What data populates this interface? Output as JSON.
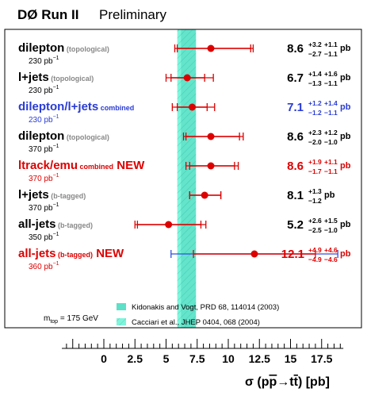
{
  "header": {
    "experiment": "DØ Run II",
    "status": "Preliminary"
  },
  "chart_data": {
    "type": "scatter",
    "orientation": "horizontal",
    "xlabel": "σ (pp̄→tt̄) [pb]",
    "xlim": [
      -3.5,
      19.5
    ],
    "x_ticks": [
      "0",
      "2.5",
      "5",
      "7.5",
      "10",
      "12.5",
      "15",
      "17.5"
    ],
    "theory_bands": [
      {
        "label": "Kidonakis and Vogt, PRD 68, 114014 (2003)",
        "low": 6.2,
        "high": 7.4,
        "color": "#5ee0c8",
        "hatched": false
      },
      {
        "label": "Cacciari et al., JHEP 0404, 068 (2004)",
        "low": 5.9,
        "high": 7.4,
        "color": "#7ff5dc",
        "hatched": true
      }
    ],
    "mtop_note": "m_top = 175 GeV",
    "unit": "pb",
    "lumi_unit": "pb",
    "lumi_exp": "−1",
    "series": [
      {
        "name": "dilepton",
        "tag": "(topological)",
        "new": "",
        "lumi": "230",
        "value": 8.6,
        "value_label": "8.6",
        "stat_up": "+3.2",
        "stat_dn": "−2.7",
        "syst_up": "+1.1",
        "syst_dn": "−1.1",
        "stat_err": [
          -2.7,
          3.2
        ],
        "total_err": [
          -2.9,
          3.4
        ],
        "color": "#000000",
        "bar_color": "#dd0000",
        "color_val": "#000000"
      },
      {
        "name": "l+jets",
        "tag": "(topological)",
        "new": "",
        "lumi": "230",
        "value": 6.7,
        "value_label": "6.7",
        "stat_up": "+1.4",
        "stat_dn": "−1.3",
        "syst_up": "+1.6",
        "syst_dn": "−1.1",
        "stat_err": [
          -1.3,
          1.4
        ],
        "total_err": [
          -1.7,
          2.1
        ],
        "color": "#000000",
        "bar_color": "#dd0000",
        "color_val": "#000000"
      },
      {
        "name": "dilepton/l+jets",
        "tag": "combined",
        "new": "",
        "lumi": "230",
        "value": 7.1,
        "value_label": "7.1",
        "stat_up": "+1.2",
        "stat_dn": "−1.2",
        "syst_up": "+1.4",
        "syst_dn": "−1.1",
        "stat_err": [
          -1.2,
          1.2
        ],
        "total_err": [
          -1.6,
          1.8
        ],
        "color": "#2a3cd4",
        "bar_color": "#dd0000",
        "color_val": "#2a3cd4"
      },
      {
        "name": "dilepton",
        "tag": "(topological)",
        "new": "",
        "lumi": "370",
        "value": 8.6,
        "value_label": "8.6",
        "stat_up": "+2.3",
        "stat_dn": "−2.0",
        "syst_up": "+1.2",
        "syst_dn": "−1.0",
        "stat_err": [
          -2.0,
          2.3
        ],
        "total_err": [
          -2.2,
          2.6
        ],
        "color": "#000000",
        "bar_color": "#dd0000",
        "color_val": "#000000"
      },
      {
        "name": "ltrack/emu",
        "tag": "combined",
        "new": "NEW",
        "lumi": "370",
        "value": 8.6,
        "value_label": "8.6",
        "stat_up": "+1.9",
        "stat_dn": "−1.7",
        "syst_up": "+1.1",
        "syst_dn": "−1.1",
        "stat_err": [
          -1.7,
          1.9
        ],
        "total_err": [
          -2.0,
          2.2
        ],
        "color": "#dd0000",
        "bar_color": "#dd0000",
        "color_val": "#dd0000"
      },
      {
        "name": "l+jets",
        "tag": "(b-tagged)",
        "new": "",
        "lumi": "370",
        "value": 8.1,
        "value_label": "8.1",
        "stat_up": "+1.3",
        "stat_dn": "−1.2",
        "syst_up": "",
        "syst_dn": "",
        "stat_err": [
          -1.2,
          1.3
        ],
        "total_err": [
          -1.2,
          1.3
        ],
        "color": "#000000",
        "bar_color": "#dd0000",
        "color_val": "#000000"
      },
      {
        "name": "all-jets",
        "tag": "(b-tagged)",
        "new": "",
        "lumi": "350",
        "value": 5.2,
        "value_label": "5.2",
        "stat_up": "+2.6",
        "stat_dn": "−2.5",
        "syst_up": "+1.5",
        "syst_dn": "−1.0",
        "stat_err": [
          -2.5,
          2.6
        ],
        "total_err": [
          -2.7,
          3.0
        ],
        "color": "#000000",
        "bar_color": "#dd0000",
        "color_val": "#000000"
      },
      {
        "name": "all-jets",
        "tag": "(b-tagged)",
        "new": "NEW",
        "lumi": "360",
        "value": 12.1,
        "value_label": "12.1",
        "stat_up": "+4.9",
        "stat_dn": "−4.9",
        "syst_up": "+4.6",
        "syst_dn": "−4.6",
        "stat_err": [
          -4.9,
          4.9
        ],
        "total_err": [
          -6.7,
          6.7
        ],
        "color": "#dd0000",
        "bar_color": "#dd0000",
        "total_color": "#3050e0",
        "color_val": "#dd0000"
      }
    ]
  }
}
